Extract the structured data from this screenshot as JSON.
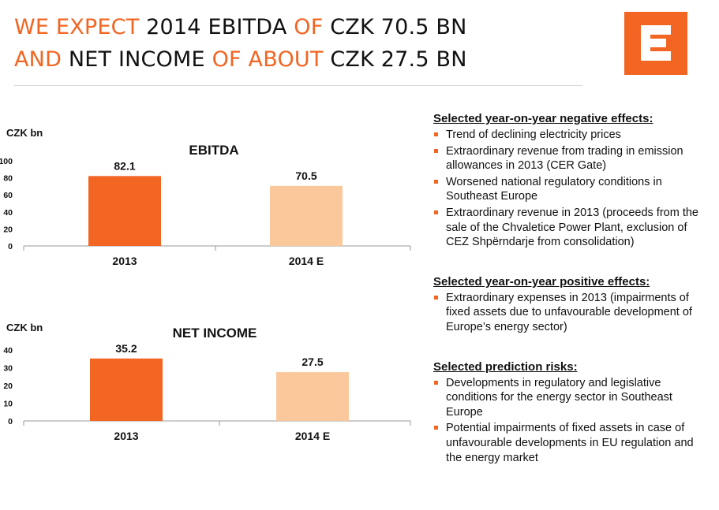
{
  "title": {
    "line1": [
      {
        "text": "WE EXPECT ",
        "accent": true
      },
      {
        "text": "2014 EBITDA ",
        "accent": false
      },
      {
        "text": "OF ",
        "accent": true
      },
      {
        "text": "CZK 70.5 BN",
        "accent": false
      }
    ],
    "line2": [
      {
        "text": "AND ",
        "accent": true
      },
      {
        "text": "NET INCOME ",
        "accent": false
      },
      {
        "text": "OF ABOUT ",
        "accent": true
      },
      {
        "text": "CZK 27.5 BN",
        "accent": false
      }
    ]
  },
  "colors": {
    "accent": "#f26522",
    "bar_2013": "#f26522",
    "bar_2014": "#fbc89b",
    "axis": "#999999"
  },
  "logo": {
    "icon": "cez-logo-icon",
    "color": "#f26522"
  },
  "chart_data": [
    {
      "type": "bar",
      "title": "EBITDA",
      "ylabel": "CZK bn",
      "categories": [
        "2013",
        "2014 E"
      ],
      "values": [
        82.1,
        70.5
      ],
      "value_labels": [
        "82.1",
        "70.5"
      ],
      "ylim": [
        0,
        100
      ],
      "yticks": [
        0,
        20,
        40,
        60,
        80,
        100
      ],
      "grid": false
    },
    {
      "type": "bar",
      "title": "NET INCOME",
      "ylabel": "CZK bn",
      "categories": [
        "2013",
        "2014 E"
      ],
      "values": [
        35.2,
        27.5
      ],
      "value_labels": [
        "35.2",
        "27.5"
      ],
      "ylim": [
        0,
        40
      ],
      "yticks": [
        0,
        10,
        20,
        30,
        40
      ],
      "grid": false
    }
  ],
  "sections": [
    {
      "heading": "Selected year-on-year negative effects:",
      "items": [
        "Trend of declining electricity prices",
        "Extraordinary revenue from trading in emission allowances in 2013 (CER Gate)",
        "Worsened national regulatory conditions in Southeast Europe",
        "Extraordinary revenue in 2013 (proceeds from the sale of the Chvaletice Power Plant, exclusion of CEZ Shpërndarje from consolidation)"
      ]
    },
    {
      "heading": "Selected year-on-year positive effects:",
      "items": [
        "Extraordinary expenses in 2013 (impairments of fixed assets due to unfavourable development of Europe’s energy sector)"
      ]
    },
    {
      "heading": "Selected prediction risks:",
      "items": [
        "Developments in regulatory and legislative conditions for the energy sector in Southeast Europe",
        "Potential impairments of fixed assets in case of unfavourable developments in EU regulation and the energy market"
      ]
    }
  ]
}
